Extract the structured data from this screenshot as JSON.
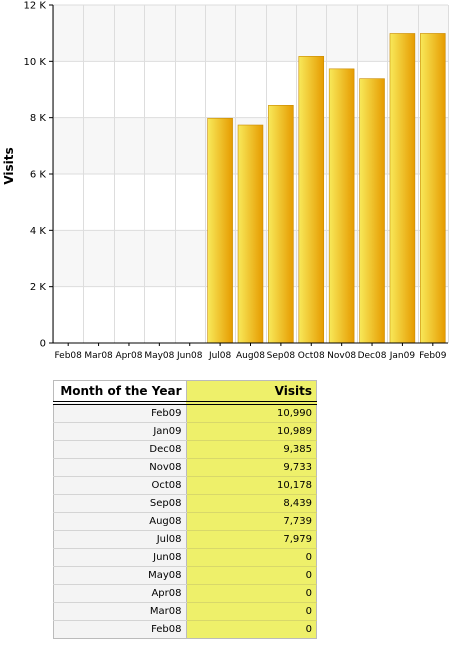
{
  "chart_data": {
    "type": "bar",
    "title": "",
    "xlabel": "",
    "ylabel": "Visits",
    "ylim": [
      0,
      12000
    ],
    "yticks": [
      0,
      2000,
      4000,
      6000,
      8000,
      10000,
      12000
    ],
    "ytick_labels": [
      "0",
      "2 K",
      "4 K",
      "6 K",
      "8 K",
      "10 K",
      "12 K"
    ],
    "categories": [
      "Feb08",
      "Mar08",
      "Apr08",
      "May08",
      "Jun08",
      "Jul08",
      "Aug08",
      "Sep08",
      "Oct08",
      "Nov08",
      "Dec08",
      "Jan09",
      "Feb09"
    ],
    "values": [
      0,
      0,
      0,
      0,
      0,
      7979,
      7739,
      8439,
      10178,
      9733,
      9385,
      10989,
      10990
    ],
    "grid": true,
    "legend": "none",
    "colors": {
      "bar_light": "#f8e95a",
      "bar_dark": "#e69b00",
      "bar_edge": "#c98a00",
      "accent_column": "#eef06a"
    }
  },
  "table": {
    "col_month": "Month of the Year",
    "col_visits": "Visits",
    "rows": [
      {
        "month": "Feb09",
        "visits": "10,990"
      },
      {
        "month": "Jan09",
        "visits": "10,989"
      },
      {
        "month": "Dec08",
        "visits": "9,385"
      },
      {
        "month": "Nov08",
        "visits": "9,733"
      },
      {
        "month": "Oct08",
        "visits": "10,178"
      },
      {
        "month": "Sep08",
        "visits": "8,439"
      },
      {
        "month": "Aug08",
        "visits": "7,739"
      },
      {
        "month": "Jul08",
        "visits": "7,979"
      },
      {
        "month": "Jun08",
        "visits": "0"
      },
      {
        "month": "May08",
        "visits": "0"
      },
      {
        "month": "Apr08",
        "visits": "0"
      },
      {
        "month": "Mar08",
        "visits": "0"
      },
      {
        "month": "Feb08",
        "visits": "0"
      }
    ]
  }
}
